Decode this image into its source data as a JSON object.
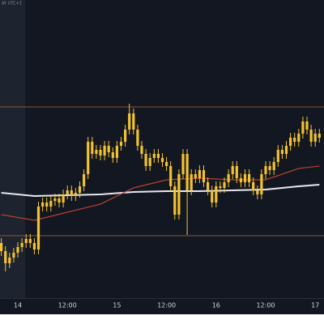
{
  "chart_data": {
    "type": "candlestick",
    "corner_text": "AY UTC+2",
    "categories": [
      null,
      null,
      null,
      null,
      "14",
      null,
      null,
      null,
      null,
      null,
      null,
      null,
      null,
      null,
      null,
      null,
      "12:00",
      null,
      null,
      null,
      null,
      null,
      null,
      null,
      null,
      null,
      null,
      null,
      "15",
      null,
      null,
      null,
      null,
      null,
      null,
      null,
      null,
      null,
      null,
      null,
      "12:00",
      null,
      null,
      null,
      null,
      null,
      null,
      null,
      null,
      null,
      null,
      null,
      "16",
      null,
      null,
      null,
      null,
      null,
      null,
      null,
      null,
      null,
      null,
      null,
      "12:00",
      null,
      null,
      null,
      null,
      null,
      null,
      null,
      null,
      null,
      null,
      null,
      "17",
      null
    ],
    "open": [
      70,
      60,
      45,
      52,
      58,
      65,
      70,
      75,
      70,
      62,
      115,
      120,
      115,
      122,
      125,
      120,
      130,
      135,
      128,
      132,
      140,
      155,
      195,
      180,
      185,
      178,
      190,
      182,
      175,
      190,
      195,
      210,
      230,
      210,
      190,
      180,
      165,
      175,
      180,
      175,
      170,
      165,
      140,
      105,
      155,
      180,
      135,
      155,
      150,
      160,
      145,
      135,
      120,
      140,
      138,
      145,
      155,
      165,
      150,
      145,
      155,
      145,
      135,
      130,
      155,
      165,
      160,
      170,
      185,
      180,
      190,
      200,
      195,
      205,
      220,
      210,
      195,
      205
    ],
    "high": [
      76,
      66,
      58,
      64,
      71,
      76,
      81,
      81,
      76,
      121,
      126,
      126,
      128,
      131,
      131,
      136,
      141,
      141,
      138,
      146,
      161,
      201,
      201,
      191,
      191,
      196,
      196,
      188,
      196,
      201,
      216,
      242,
      236,
      216,
      196,
      186,
      181,
      186,
      186,
      181,
      176,
      171,
      146,
      161,
      186,
      186,
      161,
      161,
      166,
      166,
      151,
      141,
      146,
      146,
      151,
      161,
      171,
      171,
      156,
      161,
      161,
      151,
      141,
      161,
      171,
      171,
      176,
      191,
      191,
      196,
      206,
      206,
      211,
      226,
      226,
      216,
      211,
      211
    ],
    "low": [
      54,
      35,
      39,
      46,
      52,
      59,
      64,
      64,
      56,
      56,
      109,
      109,
      109,
      116,
      114,
      114,
      124,
      122,
      122,
      126,
      134,
      149,
      174,
      174,
      172,
      172,
      176,
      169,
      169,
      184,
      189,
      204,
      204,
      184,
      174,
      159,
      159,
      169,
      169,
      164,
      159,
      134,
      99,
      99,
      149,
      80,
      129,
      144,
      144,
      139,
      129,
      114,
      114,
      132,
      132,
      139,
      149,
      144,
      139,
      139,
      139,
      129,
      124,
      124,
      149,
      154,
      154,
      164,
      174,
      174,
      184,
      189,
      189,
      199,
      204,
      189,
      189,
      194
    ],
    "close": [
      60,
      45,
      52,
      58,
      65,
      70,
      75,
      70,
      62,
      115,
      120,
      115,
      122,
      125,
      120,
      130,
      135,
      128,
      132,
      140,
      155,
      195,
      180,
      185,
      178,
      190,
      182,
      175,
      190,
      195,
      210,
      230,
      210,
      190,
      180,
      165,
      175,
      180,
      175,
      170,
      165,
      140,
      105,
      155,
      180,
      135,
      155,
      150,
      160,
      145,
      135,
      120,
      140,
      138,
      145,
      155,
      165,
      150,
      145,
      155,
      145,
      135,
      130,
      155,
      165,
      160,
      170,
      185,
      180,
      190,
      200,
      195,
      205,
      220,
      210,
      195,
      205,
      200
    ],
    "color": "#f2c230",
    "series": [
      {
        "color": "#e8e8ee",
        "x": [
          0,
          8,
          16,
          24,
          32,
          40,
          48,
          56,
          64,
          72,
          77
        ],
        "values": [
          132,
          128,
          129,
          130,
          133,
          134,
          134,
          135,
          136,
          140,
          142
        ]
      },
      {
        "color": "#b5432c",
        "x": [
          0,
          8,
          16,
          24,
          32,
          40,
          48,
          56,
          64,
          72,
          77
        ],
        "values": [
          105,
          98,
          108,
          118,
          138,
          148,
          150,
          148,
          148,
          162,
          165
        ]
      }
    ],
    "reference_lines": [
      {
        "value": 238,
        "color": "#8a5a2e"
      },
      {
        "value": 79,
        "color": "#8a5a2e"
      }
    ],
    "ylim": [
      0,
      370
    ]
  }
}
